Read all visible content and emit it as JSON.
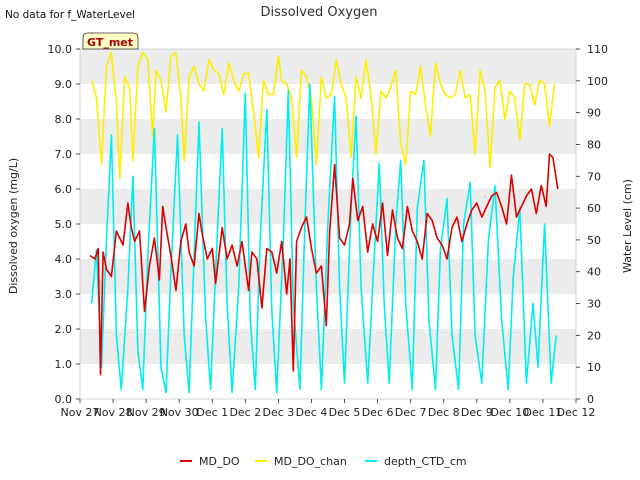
{
  "no_data_note": "No data for f_WaterLevel",
  "badge": "GT_met",
  "chart_data": {
    "type": "line",
    "title": "Dissolved Oxygen",
    "ylabel": "Dissolved oxygen (mg/L)",
    "y2label": "Water Level (cm)",
    "xlabel": "",
    "ylim": [
      0,
      10
    ],
    "y2lim": [
      0,
      110
    ],
    "yticks": [
      "0.0",
      "1.0",
      "2.0",
      "3.0",
      "4.0",
      "5.0",
      "6.0",
      "7.0",
      "8.0",
      "9.0",
      "10.0"
    ],
    "y2ticks": [
      "0",
      "10",
      "20",
      "30",
      "40",
      "50",
      "60",
      "70",
      "80",
      "90",
      "100",
      "110"
    ],
    "xlim": [
      27.0,
      42.0
    ],
    "xticks": [
      "Nov 27",
      "Nov 28",
      "Nov 29",
      "Nov 30",
      "Dec 1",
      "Dec 2",
      "Dec 3",
      "Dec 4",
      "Dec 5",
      "Dec 6",
      "Dec 7",
      "Dec 8",
      "Dec 9",
      "Dec 10",
      "Dec 11",
      "Dec 12"
    ],
    "grid": "horizontal bands",
    "legend_position": "bottom",
    "series": [
      {
        "name": "MD_DO",
        "color": "#dd0000",
        "axis": "left",
        "x": [
          27.3,
          27.45,
          27.55,
          27.62,
          27.7,
          27.8,
          27.95,
          28.1,
          28.3,
          28.45,
          28.55,
          28.65,
          28.8,
          28.95,
          29.1,
          29.25,
          29.4,
          29.5,
          29.6,
          29.75,
          29.9,
          30.05,
          30.2,
          30.3,
          30.45,
          30.6,
          30.7,
          30.85,
          31.0,
          31.1,
          31.3,
          31.45,
          31.6,
          31.75,
          31.9,
          32.1,
          32.2,
          32.35,
          32.5,
          32.65,
          32.8,
          32.95,
          33.1,
          33.25,
          33.35,
          33.45,
          33.55,
          33.7,
          33.85,
          34.0,
          34.15,
          34.3,
          34.45,
          34.55,
          34.7,
          34.85,
          35.0,
          35.15,
          35.25,
          35.4,
          35.55,
          35.7,
          35.85,
          36.0,
          36.15,
          36.3,
          36.45,
          36.6,
          36.75,
          36.9,
          37.05,
          37.2,
          37.35,
          37.5,
          37.65,
          37.8,
          37.95,
          38.1,
          38.25,
          38.4,
          38.55,
          38.7,
          38.85,
          39.0,
          39.15,
          39.3,
          39.45,
          39.6,
          39.75,
          39.9,
          40.05,
          40.2,
          40.35,
          40.5,
          40.65,
          40.8,
          40.95,
          41.1,
          41.2,
          41.3,
          41.45
        ],
        "values": [
          4.1,
          4.0,
          4.3,
          0.7,
          4.2,
          3.7,
          3.5,
          4.8,
          4.4,
          5.6,
          4.9,
          4.5,
          4.8,
          2.5,
          3.8,
          4.6,
          3.4,
          5.5,
          4.9,
          4.1,
          3.1,
          4.5,
          5.0,
          4.2,
          3.8,
          5.3,
          4.7,
          4.0,
          4.3,
          3.3,
          4.9,
          4.0,
          4.4,
          3.8,
          4.5,
          3.1,
          4.2,
          4.0,
          2.6,
          4.3,
          4.2,
          3.6,
          4.5,
          3.0,
          4.0,
          0.8,
          4.5,
          4.9,
          5.2,
          4.3,
          3.6,
          3.8,
          2.1,
          4.8,
          6.7,
          4.6,
          4.4,
          5.0,
          6.3,
          5.1,
          5.5,
          4.2,
          5.0,
          4.5,
          5.6,
          4.1,
          5.4,
          4.6,
          4.3,
          5.5,
          4.8,
          4.5,
          4.0,
          5.3,
          5.1,
          4.6,
          4.4,
          4.0,
          4.9,
          5.2,
          4.5,
          5.0,
          5.4,
          5.6,
          5.2,
          5.5,
          5.8,
          5.9,
          5.5,
          5.0,
          6.4,
          5.2,
          5.5,
          5.8,
          6.0,
          5.3,
          6.1,
          5.5,
          7.0,
          6.9,
          6.0
        ]
      },
      {
        "name": "MD_DO_chan",
        "color": "#ffee00",
        "axis": "left",
        "x": [
          27.35,
          27.5,
          27.65,
          27.8,
          27.95,
          28.1,
          28.2,
          28.35,
          28.5,
          28.6,
          28.75,
          28.9,
          29.05,
          29.2,
          29.3,
          29.45,
          29.6,
          29.75,
          29.9,
          30.05,
          30.15,
          30.3,
          30.45,
          30.6,
          30.75,
          30.9,
          31.05,
          31.2,
          31.35,
          31.5,
          31.65,
          31.8,
          31.95,
          32.1,
          32.25,
          32.4,
          32.55,
          32.7,
          32.85,
          33.0,
          33.1,
          33.25,
          33.4,
          33.55,
          33.7,
          33.85,
          34.0,
          34.15,
          34.3,
          34.45,
          34.6,
          34.75,
          34.9,
          35.05,
          35.2,
          35.35,
          35.5,
          35.65,
          35.8,
          35.95,
          36.1,
          36.25,
          36.4,
          36.55,
          36.7,
          36.85,
          37.0,
          37.15,
          37.3,
          37.45,
          37.6,
          37.75,
          37.9,
          38.05,
          38.2,
          38.35,
          38.5,
          38.65,
          38.8,
          38.95,
          39.1,
          39.25,
          39.4,
          39.55,
          39.7,
          39.85,
          40.0,
          40.15,
          40.3,
          40.45,
          40.6,
          40.75,
          40.9,
          41.05,
          41.2,
          41.35
        ],
        "values": [
          9.1,
          8.6,
          6.7,
          9.5,
          9.9,
          8.5,
          6.3,
          9.2,
          8.9,
          6.8,
          9.5,
          9.9,
          9.7,
          7.5,
          9.4,
          9.1,
          8.2,
          9.8,
          9.9,
          8.6,
          6.8,
          9.2,
          9.5,
          9.0,
          8.8,
          9.7,
          9.4,
          9.3,
          8.7,
          9.6,
          9.1,
          8.8,
          9.3,
          9.3,
          8.2,
          6.9,
          9.1,
          8.7,
          8.7,
          9.8,
          9.1,
          9.0,
          8.6,
          6.9,
          9.4,
          9.2,
          8.6,
          6.7,
          9.2,
          8.6,
          8.7,
          9.7,
          9.0,
          8.6,
          6.9,
          9.2,
          8.6,
          9.7,
          8.7,
          7.0,
          8.8,
          8.6,
          8.9,
          9.4,
          7.3,
          6.7,
          8.8,
          8.7,
          9.5,
          8.4,
          7.5,
          9.6,
          9.0,
          8.7,
          8.6,
          8.7,
          9.4,
          8.6,
          8.7,
          7.0,
          9.4,
          8.8,
          6.6,
          8.9,
          9.1,
          8.0,
          8.8,
          8.6,
          7.4,
          9.0,
          9.0,
          8.4,
          9.1,
          9.0,
          7.8,
          9.0
        ]
      },
      {
        "name": "depth_CTD_cm",
        "color": "#00eeee",
        "axis": "right",
        "x": [
          27.35,
          27.5,
          27.65,
          27.8,
          27.95,
          28.1,
          28.25,
          28.45,
          28.6,
          28.75,
          28.9,
          29.05,
          29.25,
          29.45,
          29.6,
          29.75,
          29.95,
          30.15,
          30.3,
          30.45,
          30.6,
          30.8,
          30.95,
          31.1,
          31.3,
          31.45,
          31.6,
          31.8,
          32.0,
          32.15,
          32.3,
          32.45,
          32.65,
          32.8,
          32.95,
          33.15,
          33.3,
          33.45,
          33.65,
          33.8,
          33.95,
          34.15,
          34.3,
          34.5,
          34.7,
          34.85,
          35.0,
          35.2,
          35.35,
          35.5,
          35.7,
          35.9,
          36.05,
          36.2,
          36.35,
          36.55,
          36.7,
          36.85,
          37.05,
          37.2,
          37.4,
          37.55,
          37.75,
          37.9,
          38.1,
          38.25,
          38.45,
          38.6,
          38.8,
          38.95,
          39.15,
          39.35,
          39.55,
          39.75,
          39.95,
          40.1,
          40.3,
          40.5,
          40.7,
          40.85,
          41.05,
          41.25,
          41.4
        ],
        "values": [
          30,
          47,
          10,
          50,
          83,
          20,
          3,
          35,
          70,
          15,
          3,
          45,
          85,
          10,
          2,
          40,
          83,
          20,
          2,
          45,
          87,
          25,
          3,
          40,
          85,
          30,
          2,
          35,
          96,
          25,
          3,
          50,
          91,
          28,
          2,
          50,
          97,
          30,
          3,
          55,
          99,
          35,
          3,
          56,
          95,
          35,
          5,
          60,
          89,
          35,
          5,
          45,
          74,
          30,
          5,
          55,
          75,
          30,
          3,
          60,
          75,
          25,
          3,
          47,
          63,
          20,
          3,
          55,
          68,
          20,
          5,
          50,
          67,
          25,
          3,
          38,
          60,
          5,
          30,
          10,
          55,
          5,
          20
        ]
      }
    ]
  }
}
